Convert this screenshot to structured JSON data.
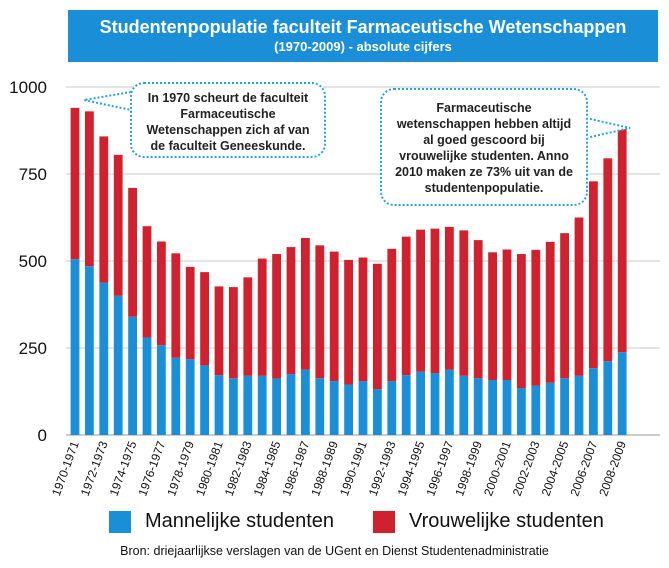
{
  "title": {
    "line1": "Studentenpopulatie faculteit Farmaceutische Wetenschappen",
    "line2": "(1970-2009) - absolute cijfers"
  },
  "colors": {
    "banner": "#1a8fd8",
    "male": "#1a8fd8",
    "female": "#cf222e",
    "bubble_border": "#2aa0e0"
  },
  "annotations": {
    "left": "In 1970 scheurt de faculteit Farmaceutische Wetenschappen zich af van de faculteit Geneeskunde.",
    "right": "Farmaceutische wetenschappen hebben altijd al goed gescoord bij vrouwelijke studenten. Anno 2010 maken ze 73% uit van de studentenpopulatie."
  },
  "legend": {
    "male": "Mannelijke studenten",
    "female": "Vrouwelijke studenten"
  },
  "source": "Bron: driejaarlijkse verslagen van de UGent en Dienst Studentenadministratie",
  "chart_data": {
    "type": "bar",
    "stacked": true,
    "categories": [
      "1970-1971",
      "1971-1972",
      "1972-1973",
      "1973-1974",
      "1974-1975",
      "1975-1976",
      "1976-1977",
      "1977-1978",
      "1978-1979",
      "1979-1980",
      "1980-1981",
      "1981-1982",
      "1982-1983",
      "1983-1984",
      "1984-1985",
      "1985-1986",
      "1986-1987",
      "1987-1988",
      "1988-1989",
      "1989-1990",
      "1990-1991",
      "1991-1992",
      "1992-1993",
      "1993-1994",
      "1994-1995",
      "1995-1996",
      "1996-1997",
      "1997-1998",
      "1998-1999",
      "1999-2000",
      "2000-2001",
      "2001-2002",
      "2002-2003",
      "2003-2004",
      "2004-2005",
      "2005-2006",
      "2006-2007",
      "2007-2008",
      "2008-2009"
    ],
    "visible_tick_labels": [
      "1970-1971",
      "1972-1973",
      "1974-1975",
      "1976-1977",
      "1978-1979",
      "1980-1981",
      "1982-1983",
      "1984-1985",
      "1986-1987",
      "1988-1989",
      "1990-1991",
      "1992-1993",
      "1994-1995",
      "1996-1997",
      "1998-1999",
      "2000-2001",
      "2002-2003",
      "2004-2005",
      "2006-2007",
      "2008-2009"
    ],
    "series": [
      {
        "name": "Mannelijke studenten",
        "values": [
          505,
          485,
          438,
          400,
          340,
          280,
          258,
          222,
          218,
          200,
          172,
          163,
          170,
          170,
          162,
          175,
          188,
          163,
          155,
          145,
          155,
          132,
          155,
          172,
          182,
          178,
          188,
          170,
          163,
          158,
          158,
          135,
          142,
          150,
          163,
          170,
          192,
          212,
          238
        ]
      },
      {
        "name": "Vrouwelijke studenten",
        "values": [
          435,
          445,
          420,
          405,
          370,
          320,
          298,
          300,
          265,
          268,
          255,
          262,
          283,
          337,
          358,
          365,
          378,
          382,
          372,
          358,
          355,
          360,
          380,
          398,
          408,
          415,
          410,
          418,
          397,
          367,
          375,
          385,
          390,
          405,
          417,
          455,
          537,
          583,
          645
        ]
      }
    ],
    "ylim": [
      0,
      1000
    ],
    "yticks": [
      0,
      250,
      500,
      750,
      1000
    ],
    "grid": true,
    "legend_position": "bottom"
  }
}
